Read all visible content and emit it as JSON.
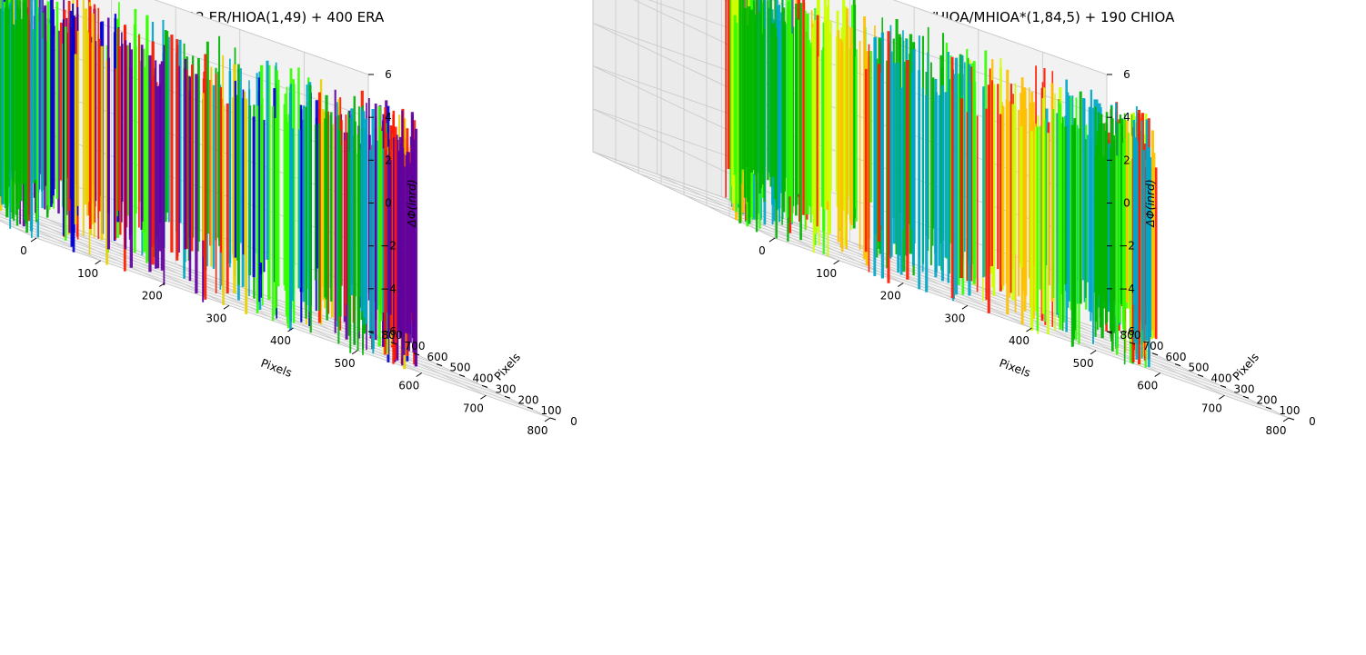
{
  "chart_data": [
    {
      "type": "surface",
      "title": "12 ER/HIOA(1,49) + 400 ERA",
      "xlabel": "Pixels",
      "ylabel": "Pixels",
      "zlabel": "ΔΦ(inrd)",
      "xlim": [
        0,
        800
      ],
      "ylim": [
        0,
        800
      ],
      "zlim": [
        -6,
        6
      ],
      "xticks": [
        "0",
        "100",
        "200",
        "300",
        "400",
        "500",
        "600",
        "700",
        "800"
      ],
      "yticks": [
        "0",
        "100",
        "200",
        "300",
        "400",
        "500",
        "600",
        "700",
        "800"
      ],
      "zticks": [
        "−6",
        "−4",
        "−2",
        "0",
        "2",
        "4",
        "6"
      ],
      "grid": true,
      "colormap": "nipy_spectral",
      "dominant_colors": [
        "#00b400",
        "#00a6c8",
        "#33ff00",
        "#0000d0",
        "#e8d000",
        "#ff1a00",
        "#6000a0"
      ]
    },
    {
      "type": "surface",
      "title": "9 CHIOA/HIOA/MHIOA*(1,84,5) + 190 CHIOA",
      "xlabel": "Pixels",
      "ylabel": "Pixels",
      "zlabel": "ΔΦ(inrd)",
      "xlim": [
        0,
        800
      ],
      "ylim": [
        0,
        800
      ],
      "zlim": [
        -6,
        6
      ],
      "xticks": [
        "0",
        "100",
        "200",
        "300",
        "400",
        "500",
        "600",
        "700",
        "800"
      ],
      "yticks": [
        "0",
        "100",
        "200",
        "300",
        "400",
        "500",
        "600",
        "700",
        "800"
      ],
      "zticks": [
        "−6",
        "−4",
        "−2",
        "0",
        "2",
        "4",
        "6"
      ],
      "grid": true,
      "colormap": "nipy_spectral",
      "dominant_colors": [
        "#00b400",
        "#33ff00",
        "#ccff00",
        "#ffc000",
        "#ff1a00",
        "#00a6c8"
      ]
    }
  ]
}
